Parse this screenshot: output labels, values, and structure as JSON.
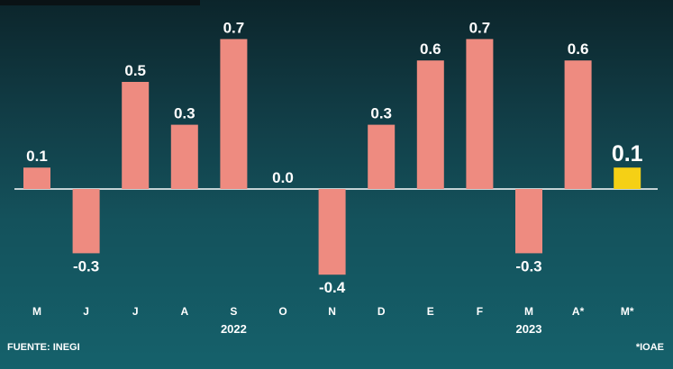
{
  "chart_data": {
    "type": "bar",
    "categories": [
      "M",
      "J",
      "J",
      "A",
      "S",
      "O",
      "N",
      "D",
      "E",
      "F",
      "M",
      "A*",
      "M*"
    ],
    "values": [
      0.1,
      -0.3,
      0.5,
      0.3,
      0.7,
      0.0,
      -0.4,
      0.3,
      0.6,
      0.7,
      -0.3,
      0.6,
      0.1
    ],
    "value_labels": [
      "0.1",
      "-0.3",
      "0.5",
      "0.3",
      "0.7",
      "0.0",
      "-0.4",
      "0.3",
      "0.6",
      "0.7",
      "-0.3",
      "0.6",
      "0.1"
    ],
    "highlight_index": 12,
    "year_groups": [
      {
        "label": "2022",
        "center_index": 4
      },
      {
        "label": "2023",
        "center_index": 10
      }
    ],
    "ylim": [
      -0.4,
      0.7
    ],
    "grid": false,
    "legend": "none"
  },
  "colors": {
    "bar": "#ee8b80",
    "highlight": "#f5d015",
    "baseline": "#ffffff",
    "text": "#ffffff"
  },
  "footer": {
    "source": "FUENTE: INEGI",
    "note": "*IOAE"
  }
}
